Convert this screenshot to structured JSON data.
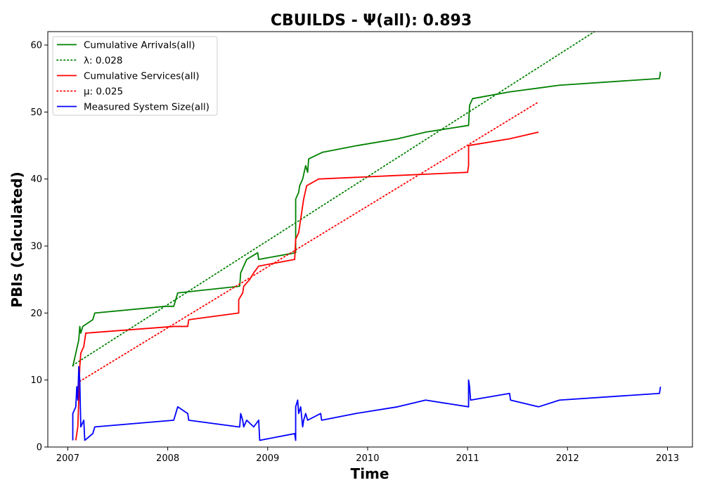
{
  "chart_data": {
    "type": "line",
    "title": "CBUILDS -  Ψ(all): 0.893",
    "xlabel": "Time",
    "ylabel": "PBIs (Calculated)",
    "xlim": [
      2006.8,
      2013.25
    ],
    "ylim": [
      0,
      62
    ],
    "xticks": [
      2007,
      2008,
      2009,
      2010,
      2011,
      2012,
      2013
    ],
    "xtick_labels": [
      "2007",
      "2008",
      "2009",
      "2010",
      "2011",
      "2012",
      "2013"
    ],
    "yticks": [
      0,
      10,
      20,
      30,
      40,
      50,
      60
    ],
    "ytick_labels": [
      "0",
      "10",
      "20",
      "30",
      "40",
      "50",
      "60"
    ],
    "grid": false,
    "legend_position": "top-left",
    "series": [
      {
        "name": "Cumulative Arrivals(all)",
        "color": "#008000",
        "style": "solid",
        "points": [
          [
            2007.05,
            12
          ],
          [
            2007.08,
            14
          ],
          [
            2007.11,
            16
          ],
          [
            2007.12,
            18
          ],
          [
            2007.13,
            17
          ],
          [
            2007.15,
            18
          ],
          [
            2007.25,
            19
          ],
          [
            2007.27,
            20
          ],
          [
            2007.98,
            21
          ],
          [
            2008.06,
            21
          ],
          [
            2008.1,
            23
          ],
          [
            2008.72,
            24
          ],
          [
            2008.73,
            26
          ],
          [
            2008.76,
            27
          ],
          [
            2008.79,
            28
          ],
          [
            2008.9,
            29
          ],
          [
            2008.91,
            28
          ],
          [
            2009.28,
            29
          ],
          [
            2009.28,
            37
          ],
          [
            2009.31,
            38
          ],
          [
            2009.32,
            39
          ],
          [
            2009.35,
            40
          ],
          [
            2009.38,
            42
          ],
          [
            2009.4,
            41
          ],
          [
            2009.41,
            43
          ],
          [
            2009.55,
            44
          ],
          [
            2009.9,
            45
          ],
          [
            2010.3,
            46
          ],
          [
            2010.58,
            47
          ],
          [
            2011.01,
            48
          ],
          [
            2011.02,
            51
          ],
          [
            2011.05,
            52
          ],
          [
            2011.42,
            53
          ],
          [
            2011.92,
            54
          ],
          [
            2012.92,
            55
          ],
          [
            2012.93,
            56
          ]
        ]
      },
      {
        "name": "λ: 0.028",
        "color": "#008000",
        "style": "dotted",
        "points": [
          [
            2007.05,
            12.2
          ],
          [
            2012.27,
            62
          ]
        ]
      },
      {
        "name": "Cumulative Services(all)",
        "color": "#ff0000",
        "style": "solid",
        "points": [
          [
            2007.08,
            1
          ],
          [
            2007.1,
            3
          ],
          [
            2007.11,
            7
          ],
          [
            2007.12,
            12
          ],
          [
            2007.13,
            14
          ],
          [
            2007.16,
            15
          ],
          [
            2007.18,
            17
          ],
          [
            2008.06,
            18
          ],
          [
            2008.2,
            18
          ],
          [
            2008.21,
            19
          ],
          [
            2008.71,
            20
          ],
          [
            2008.71,
            22
          ],
          [
            2008.75,
            23
          ],
          [
            2008.76,
            24
          ],
          [
            2008.82,
            25
          ],
          [
            2008.86,
            26
          ],
          [
            2008.91,
            27
          ],
          [
            2009.27,
            28
          ],
          [
            2009.28,
            31
          ],
          [
            2009.31,
            32
          ],
          [
            2009.33,
            34
          ],
          [
            2009.36,
            37
          ],
          [
            2009.39,
            39
          ],
          [
            2009.51,
            40
          ],
          [
            2010.25,
            40.5
          ],
          [
            2011.0,
            41
          ],
          [
            2011.01,
            42
          ],
          [
            2011.01,
            45
          ],
          [
            2011.42,
            46
          ],
          [
            2011.71,
            47
          ]
        ]
      },
      {
        "name": "μ: 0.025",
        "color": "#ff0000",
        "style": "dotted",
        "points": [
          [
            2007.12,
            9.8
          ],
          [
            2011.71,
            51.5
          ]
        ]
      },
      {
        "name": "Measured System Size(all)",
        "color": "#0000ff",
        "style": "solid",
        "points": [
          [
            2007.05,
            1
          ],
          [
            2007.05,
            5
          ],
          [
            2007.08,
            6
          ],
          [
            2007.09,
            9
          ],
          [
            2007.1,
            7
          ],
          [
            2007.11,
            12
          ],
          [
            2007.12,
            10
          ],
          [
            2007.13,
            3
          ],
          [
            2007.16,
            4
          ],
          [
            2007.17,
            1
          ],
          [
            2007.25,
            2
          ],
          [
            2007.27,
            3
          ],
          [
            2008.06,
            4
          ],
          [
            2008.1,
            6
          ],
          [
            2008.2,
            5
          ],
          [
            2008.21,
            4
          ],
          [
            2008.71,
            3
          ],
          [
            2008.72,
            3
          ],
          [
            2008.73,
            5
          ],
          [
            2008.75,
            4
          ],
          [
            2008.76,
            3
          ],
          [
            2008.79,
            4
          ],
          [
            2008.86,
            3
          ],
          [
            2008.91,
            4
          ],
          [
            2008.92,
            1
          ],
          [
            2009.27,
            2
          ],
          [
            2009.28,
            1
          ],
          [
            2009.28,
            6
          ],
          [
            2009.3,
            7
          ],
          [
            2009.31,
            5
          ],
          [
            2009.33,
            6
          ],
          [
            2009.35,
            3
          ],
          [
            2009.36,
            4
          ],
          [
            2009.38,
            5
          ],
          [
            2009.4,
            4
          ],
          [
            2009.53,
            5
          ],
          [
            2009.54,
            4
          ],
          [
            2009.88,
            5
          ],
          [
            2010.3,
            6
          ],
          [
            2010.58,
            7
          ],
          [
            2011.01,
            6
          ],
          [
            2011.01,
            10
          ],
          [
            2011.02,
            9
          ],
          [
            2011.03,
            7
          ],
          [
            2011.42,
            8
          ],
          [
            2011.43,
            7
          ],
          [
            2011.71,
            6
          ],
          [
            2011.92,
            7
          ],
          [
            2012.92,
            8
          ],
          [
            2012.93,
            9
          ]
        ]
      }
    ]
  }
}
